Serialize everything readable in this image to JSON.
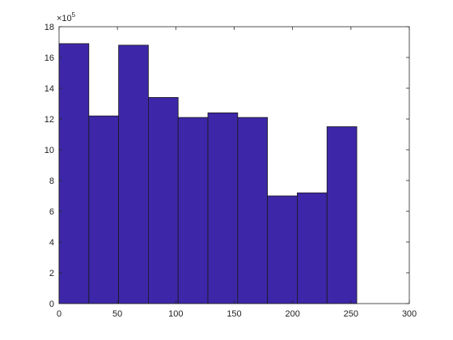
{
  "chart_data": {
    "type": "histogram",
    "bins": [
      0,
      25.5,
      51,
      76.5,
      102,
      127.5,
      153,
      178.5,
      204,
      229.5,
      255
    ],
    "values": [
      16.9,
      12.2,
      16.8,
      13.4,
      12.1,
      12.4,
      12.1,
      7.0,
      7.2,
      11.5
    ],
    "color": "#3d27a8",
    "xlim": [
      0,
      300
    ],
    "xticks": [
      0,
      50,
      100,
      150,
      200,
      250,
      300
    ],
    "ylim": [
      0,
      18
    ],
    "yticks": [
      0,
      2,
      4,
      6,
      8,
      10,
      12,
      14,
      16,
      18
    ],
    "y_multiplier": {
      "base": "×10",
      "exponent": "5"
    }
  }
}
